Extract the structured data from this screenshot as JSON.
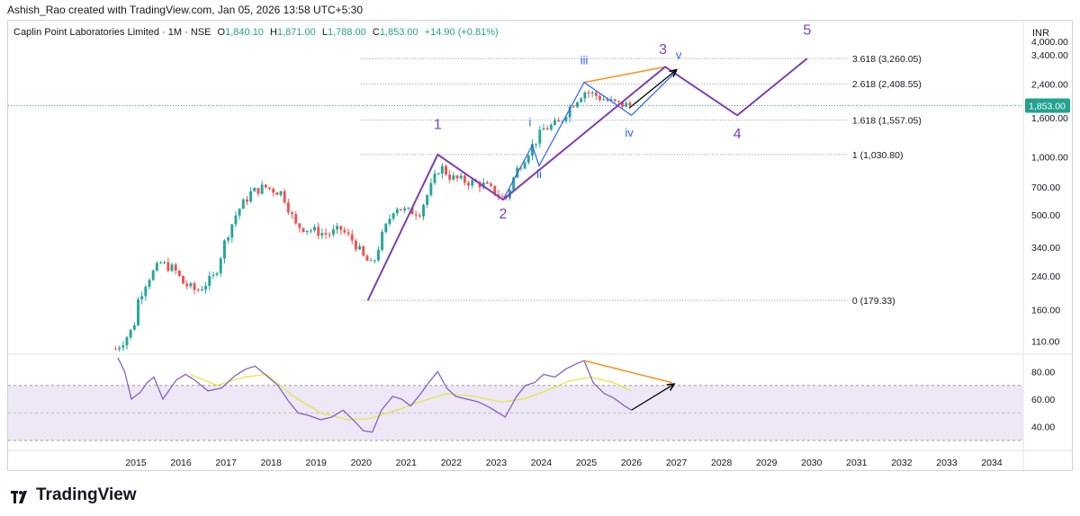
{
  "attribution": "Ashish_Rao created with TradingView.com, Jan 05, 2026 13:58 UTC+5:30",
  "header": {
    "symbol": "Caplin Point Laboratories Limited · 1M · NSE",
    "o_label": "O",
    "o_value": "1,840.10",
    "h_label": "H",
    "h_value": "1,871.00",
    "l_label": "L",
    "l_value": "1,788.00",
    "c_label": "C",
    "c_value": "1,853.00",
    "change": "+14.90 (+0.81%)"
  },
  "currency": "INR",
  "brand": "TradingView",
  "colors": {
    "up": "#26a69a",
    "down": "#ef5350",
    "wave_major": "#7b3fb3",
    "wave_minor": "#2962ff",
    "projection": "#f7931a",
    "rsi": "#7e57c2",
    "rsi_ma": "#e8e33a",
    "price_badge": "#22a28f"
  },
  "chart_data": [
    {
      "type": "candlestick",
      "title": "",
      "scale": "log",
      "ylim": [
        95,
        4050
      ],
      "xlim": [
        2014.5,
        2035
      ],
      "x_ticks": [
        "2015",
        "2016",
        "2017",
        "2018",
        "2019",
        "2020",
        "2021",
        "2022",
        "2023",
        "2024",
        "2025",
        "2026",
        "2027",
        "2028",
        "2029",
        "2030",
        "2031",
        "2032",
        "2033",
        "2034"
      ],
      "y_ticks": [
        "4,000.00",
        "3,400.00",
        "2,400.00",
        "1,600.00",
        "1,000.00",
        "700.00",
        "500.00",
        "340.00",
        "240.00",
        "160.00",
        "110.00"
      ],
      "last_price": "1,853.00",
      "ohlc_anchors": [
        [
          2014.55,
          100
        ],
        [
          2014.75,
          112
        ],
        [
          2014.95,
          130
        ],
        [
          2015.05,
          180
        ],
        [
          2015.25,
          230
        ],
        [
          2015.55,
          280
        ],
        [
          2015.85,
          260
        ],
        [
          2016.05,
          220
        ],
        [
          2016.35,
          200
        ],
        [
          2016.75,
          240
        ],
        [
          2017.0,
          380
        ],
        [
          2017.25,
          520
        ],
        [
          2017.55,
          650
        ],
        [
          2017.85,
          700
        ],
        [
          2018.25,
          650
        ],
        [
          2018.55,
          440
        ],
        [
          2018.85,
          420
        ],
        [
          2019.25,
          395
        ],
        [
          2019.55,
          420
        ],
        [
          2019.85,
          360
        ],
        [
          2020.05,
          300
        ],
        [
          2020.25,
          270
        ],
        [
          2020.45,
          380
        ],
        [
          2020.75,
          560
        ],
        [
          2021.0,
          520
        ],
        [
          2021.3,
          520
        ],
        [
          2021.55,
          700
        ],
        [
          2021.75,
          900
        ],
        [
          2022.0,
          780
        ],
        [
          2022.3,
          750
        ],
        [
          2022.7,
          720
        ],
        [
          2023.0,
          650
        ],
        [
          2023.2,
          600
        ],
        [
          2023.45,
          850
        ],
        [
          2023.75,
          1100
        ],
        [
          2024.05,
          1400
        ],
        [
          2024.4,
          1500
        ],
        [
          2024.65,
          1850
        ],
        [
          2024.95,
          2200
        ],
        [
          2025.2,
          2100
        ],
        [
          2025.5,
          1950
        ],
        [
          2025.75,
          1880
        ],
        [
          2026.0,
          1853
        ]
      ],
      "fibonacci": [
        {
          "label": "3.618 (3,260.05)",
          "value": 3260.05
        },
        {
          "label": "2.618 (2,408.55)",
          "value": 2408.55
        },
        {
          "label": "1.618 (1,557.05)",
          "value": 1557.05
        },
        {
          "label": "1 (1,030.80)",
          "value": 1030.8
        },
        {
          "label": "0 (179.33)",
          "value": 179.33
        }
      ],
      "wave_major": {
        "points": [
          [
            2020.15,
            179.33
          ],
          [
            2021.7,
            1030.8
          ],
          [
            2023.15,
            600
          ],
          [
            2026.75,
            2950
          ],
          [
            2028.35,
            1650
          ],
          [
            2029.9,
            3260
          ]
        ],
        "labels": [
          {
            "text": "1",
            "x": 2021.7,
            "y": 1400
          },
          {
            "text": "2",
            "x": 2023.15,
            "y": 480
          },
          {
            "text": "3",
            "x": 2026.7,
            "y": 3450
          },
          {
            "text": "4",
            "x": 2028.35,
            "y": 1250
          },
          {
            "text": "5",
            "x": 2029.9,
            "y": 4350
          }
        ]
      },
      "wave_minor": {
        "points": [
          [
            2023.15,
            600
          ],
          [
            2023.8,
            1150
          ],
          [
            2023.95,
            900
          ],
          [
            2024.95,
            2450
          ],
          [
            2026.0,
            1650
          ],
          [
            2027.0,
            2800
          ]
        ],
        "labels": [
          {
            "text": "i",
            "x": 2023.75,
            "y": 1450
          },
          {
            "text": "ii",
            "x": 2023.95,
            "y": 780
          },
          {
            "text": "iii",
            "x": 2024.95,
            "y": 3050
          },
          {
            "text": "iv",
            "x": 2025.95,
            "y": 1280
          },
          {
            "text": "v",
            "x": 2027.05,
            "y": 3250
          }
        ]
      },
      "projection_line": [
        [
          2024.95,
          2450
        ],
        [
          2026.75,
          2950
        ]
      ],
      "arrow": [
        [
          2025.95,
          1800
        ],
        [
          2027.0,
          2850
        ]
      ]
    },
    {
      "type": "line",
      "title": "",
      "ylim": [
        28,
        92
      ],
      "y_ticks": [
        "80.00",
        "60.00",
        "40.00"
      ],
      "band": [
        30,
        70
      ],
      "series": [
        {
          "name": "",
          "values_xy": [
            [
              2014.6,
              90
            ],
            [
              2014.75,
              80
            ],
            [
              2014.9,
              60
            ],
            [
              2015.1,
              65
            ],
            [
              2015.25,
              72
            ],
            [
              2015.4,
              76
            ],
            [
              2015.6,
              60
            ],
            [
              2015.9,
              74
            ],
            [
              2016.1,
              78
            ],
            [
              2016.3,
              74
            ],
            [
              2016.6,
              66
            ],
            [
              2016.9,
              68
            ],
            [
              2017.2,
              77
            ],
            [
              2017.45,
              82
            ],
            [
              2017.65,
              84
            ],
            [
              2017.9,
              77
            ],
            [
              2018.15,
              70
            ],
            [
              2018.4,
              58
            ],
            [
              2018.6,
              50
            ],
            [
              2018.85,
              48
            ],
            [
              2019.1,
              45
            ],
            [
              2019.35,
              47
            ],
            [
              2019.6,
              52
            ],
            [
              2019.85,
              44
            ],
            [
              2020.05,
              37
            ],
            [
              2020.25,
              36
            ],
            [
              2020.45,
              52
            ],
            [
              2020.7,
              62
            ],
            [
              2020.9,
              60
            ],
            [
              2021.1,
              55
            ],
            [
              2021.3,
              63
            ],
            [
              2021.5,
              72
            ],
            [
              2021.7,
              80
            ],
            [
              2021.9,
              68
            ],
            [
              2022.1,
              62
            ],
            [
              2022.35,
              60
            ],
            [
              2022.6,
              58
            ],
            [
              2022.85,
              54
            ],
            [
              2023.05,
              50
            ],
            [
              2023.2,
              47
            ],
            [
              2023.45,
              62
            ],
            [
              2023.65,
              70
            ],
            [
              2023.85,
              72
            ],
            [
              2024.05,
              78
            ],
            [
              2024.3,
              76
            ],
            [
              2024.55,
              82
            ],
            [
              2024.8,
              86
            ],
            [
              2024.95,
              88
            ],
            [
              2025.15,
              72
            ],
            [
              2025.4,
              64
            ],
            [
              2025.6,
              61
            ],
            [
              2025.85,
              55
            ],
            [
              2026.0,
              52
            ]
          ]
        },
        {
          "name": "",
          "values_xy": [
            [
              2016.2,
              78
            ],
            [
              2016.8,
              70
            ],
            [
              2017.4,
              76
            ],
            [
              2017.9,
              78
            ],
            [
              2018.5,
              62
            ],
            [
              2019.1,
              50
            ],
            [
              2019.7,
              45
            ],
            [
              2020.2,
              46
            ],
            [
              2020.8,
              52
            ],
            [
              2021.3,
              58
            ],
            [
              2021.9,
              64
            ],
            [
              2022.5,
              62
            ],
            [
              2023.1,
              58
            ],
            [
              2023.6,
              60
            ],
            [
              2024.1,
              66
            ],
            [
              2024.6,
              73
            ],
            [
              2025.1,
              76
            ],
            [
              2025.6,
              72
            ],
            [
              2026.0,
              66
            ]
          ]
        }
      ],
      "divergence_line": [
        [
          2024.95,
          88
        ],
        [
          2026.9,
          72
        ]
      ],
      "arrow": [
        [
          2026.0,
          52
        ],
        [
          2026.95,
          71
        ]
      ]
    }
  ]
}
